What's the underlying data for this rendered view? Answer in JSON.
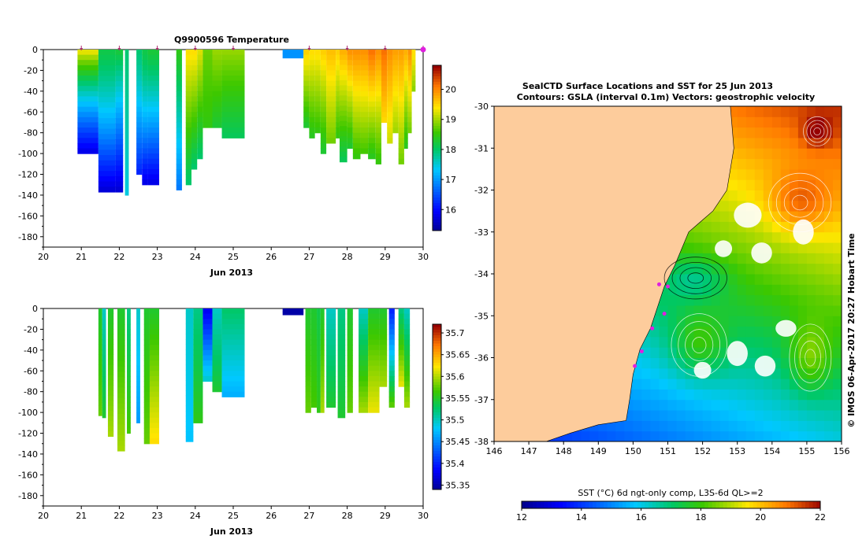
{
  "chart_data": [
    {
      "type": "heatmap",
      "id": "temp",
      "title": "Q9900596  Temperature",
      "xlabel": "Jun 2013",
      "xlim": [
        20,
        30
      ],
      "ylim": [
        -190,
        0
      ],
      "xticks": [
        "20",
        "21",
        "22",
        "23",
        "24",
        "25",
        "26",
        "27",
        "28",
        "29",
        "30"
      ],
      "yticks": [
        "0",
        "-20",
        "-40",
        "-60",
        "-80",
        "-100",
        "-120",
        "-140",
        "-160",
        "-180"
      ],
      "colorbar": {
        "min": 15.3,
        "max": 20.8,
        "ticks": [
          "16",
          "17",
          "18",
          "19",
          "20"
        ],
        "tick_values": [
          16,
          17,
          18,
          19,
          20
        ]
      },
      "markers": [
        21,
        22,
        23,
        24,
        25,
        27,
        28,
        29,
        30
      ],
      "profiles": [
        {
          "x0": 20.9,
          "x1": 21.45,
          "depth": 100,
          "top": 19.5,
          "bottom": 15.8,
          "slope": 0.8
        },
        {
          "x0": 21.45,
          "x1": 21.9,
          "depth": 137,
          "top": 18.2,
          "bottom": 15.7,
          "slope": 1.3
        },
        {
          "x0": 21.9,
          "x1": 22.1,
          "depth": 137,
          "top": 18.3,
          "bottom": 15.7,
          "slope": 1.0
        },
        {
          "x0": 22.15,
          "x1": 22.25,
          "depth": 140,
          "top": 18.0,
          "bottom": 17.5,
          "slope": 1.0
        },
        {
          "x0": 22.45,
          "x1": 22.6,
          "depth": 120,
          "top": 18.0,
          "bottom": 16.2,
          "slope": 1.2
        },
        {
          "x0": 22.6,
          "x1": 22.75,
          "depth": 130,
          "top": 18.2,
          "bottom": 15.8,
          "slope": 1.3
        },
        {
          "x0": 22.75,
          "x1": 23.05,
          "depth": 130,
          "top": 18.3,
          "bottom": 15.8,
          "slope": 1.2
        },
        {
          "x0": 23.5,
          "x1": 23.65,
          "depth": 135,
          "top": 18.5,
          "bottom": 16.8,
          "slope": 1.0
        },
        {
          "x0": 23.75,
          "x1": 23.9,
          "depth": 130,
          "top": 19.5,
          "bottom": 18.0,
          "slope": 1.0
        },
        {
          "x0": 23.9,
          "x1": 24.05,
          "depth": 115,
          "top": 19.5,
          "bottom": 18.0,
          "slope": 1.0
        },
        {
          "x0": 24.05,
          "x1": 24.2,
          "depth": 105,
          "top": 19.3,
          "bottom": 18.0,
          "slope": 1.0
        },
        {
          "x0": 24.2,
          "x1": 24.45,
          "depth": 75,
          "top": 18.8,
          "bottom": 18.5,
          "slope": 1.0
        },
        {
          "x0": 24.45,
          "x1": 24.7,
          "depth": 75,
          "top": 19.0,
          "bottom": 18.3,
          "slope": 1.0
        },
        {
          "x0": 24.7,
          "x1": 25.3,
          "depth": 85,
          "top": 19.0,
          "bottom": 18.1,
          "slope": 0.9
        },
        {
          "x0": 26.3,
          "x1": 26.85,
          "depth": 8,
          "top": 17.0,
          "bottom": 17.0,
          "slope": 1.0
        },
        {
          "x0": 26.85,
          "x1": 27.0,
          "depth": 75,
          "top": 19.6,
          "bottom": 18.3,
          "slope": 1.0
        },
        {
          "x0": 27.0,
          "x1": 27.15,
          "depth": 85,
          "top": 19.5,
          "bottom": 18.4,
          "slope": 1.0
        },
        {
          "x0": 27.15,
          "x1": 27.3,
          "depth": 80,
          "top": 19.5,
          "bottom": 18.5,
          "slope": 1.0
        },
        {
          "x0": 27.3,
          "x1": 27.45,
          "depth": 100,
          "top": 19.6,
          "bottom": 18.3,
          "slope": 1.0
        },
        {
          "x0": 27.45,
          "x1": 27.7,
          "depth": 90,
          "top": 19.7,
          "bottom": 18.8,
          "slope": 1.0
        },
        {
          "x0": 27.7,
          "x1": 27.8,
          "depth": 85,
          "top": 19.6,
          "bottom": 18.5,
          "slope": 1.0
        },
        {
          "x0": 27.8,
          "x1": 28.0,
          "depth": 108,
          "top": 19.8,
          "bottom": 18.1,
          "slope": 1.0
        },
        {
          "x0": 28.0,
          "x1": 28.15,
          "depth": 95,
          "top": 20.0,
          "bottom": 18.3,
          "slope": 1.0
        },
        {
          "x0": 28.15,
          "x1": 28.35,
          "depth": 105,
          "top": 20.0,
          "bottom": 18.5,
          "slope": 1.0
        },
        {
          "x0": 28.35,
          "x1": 28.55,
          "depth": 100,
          "top": 20.0,
          "bottom": 18.6,
          "slope": 1.0
        },
        {
          "x0": 28.55,
          "x1": 28.75,
          "depth": 105,
          "top": 20.2,
          "bottom": 18.4,
          "slope": 1.0
        },
        {
          "x0": 28.75,
          "x1": 28.9,
          "depth": 110,
          "top": 20.0,
          "bottom": 18.5,
          "slope": 1.0
        },
        {
          "x0": 28.9,
          "x1": 29.05,
          "depth": 70,
          "top": 20.2,
          "bottom": 19.5,
          "slope": 1.0
        },
        {
          "x0": 29.05,
          "x1": 29.2,
          "depth": 90,
          "top": 20.0,
          "bottom": 19.2,
          "slope": 1.0
        },
        {
          "x0": 29.2,
          "x1": 29.35,
          "depth": 80,
          "top": 19.9,
          "bottom": 19.0,
          "slope": 1.0
        },
        {
          "x0": 29.35,
          "x1": 29.5,
          "depth": 110,
          "top": 19.9,
          "bottom": 18.8,
          "slope": 1.0
        },
        {
          "x0": 29.5,
          "x1": 29.6,
          "depth": 95,
          "top": 19.8,
          "bottom": 18.4,
          "slope": 1.0
        },
        {
          "x0": 29.6,
          "x1": 29.7,
          "depth": 80,
          "top": 20.0,
          "bottom": 18.8,
          "slope": 1.0
        },
        {
          "x0": 29.7,
          "x1": 29.8,
          "depth": 40,
          "top": 19.5,
          "bottom": 18.9,
          "slope": 1.0
        }
      ]
    },
    {
      "type": "heatmap",
      "id": "psal",
      "title": "",
      "xlabel": "Jun 2013",
      "xlim": [
        20,
        30
      ],
      "ylim": [
        -190,
        0
      ],
      "xticks": [
        "20",
        "21",
        "22",
        "23",
        "24",
        "25",
        "26",
        "27",
        "28",
        "29",
        "30"
      ],
      "yticks": [
        "0",
        "-20",
        "-40",
        "-60",
        "-80",
        "-100",
        "-120",
        "-140",
        "-160",
        "-180"
      ],
      "colorbar": {
        "min": 35.34,
        "max": 35.72,
        "ticks": [
          "35.35",
          "35.4",
          "35.45",
          "35.5",
          "35.55",
          "35.6",
          "35.65",
          "35.7"
        ],
        "tick_values": [
          35.35,
          35.4,
          35.45,
          35.5,
          35.55,
          35.6,
          35.65,
          35.7
        ]
      },
      "markers": [],
      "profiles": [
        {
          "x0": 21.45,
          "x1": 21.55,
          "depth": 103,
          "top": 35.55,
          "bottom": 35.58,
          "slope": 1.0
        },
        {
          "x0": 21.55,
          "x1": 21.65,
          "depth": 105,
          "top": 35.5,
          "bottom": 35.55,
          "slope": 1.0
        },
        {
          "x0": 21.7,
          "x1": 21.85,
          "depth": 123,
          "top": 35.55,
          "bottom": 35.6,
          "slope": 1.0
        },
        {
          "x0": 21.95,
          "x1": 22.15,
          "depth": 137,
          "top": 35.55,
          "bottom": 35.6,
          "slope": 1.0
        },
        {
          "x0": 22.2,
          "x1": 22.3,
          "depth": 120,
          "top": 35.52,
          "bottom": 35.57,
          "slope": 1.0
        },
        {
          "x0": 22.45,
          "x1": 22.55,
          "depth": 110,
          "top": 35.5,
          "bottom": 35.46,
          "slope": 1.0
        },
        {
          "x0": 22.65,
          "x1": 22.8,
          "depth": 130,
          "top": 35.55,
          "bottom": 35.58,
          "slope": 1.0
        },
        {
          "x0": 22.8,
          "x1": 23.05,
          "depth": 130,
          "top": 35.55,
          "bottom": 35.63,
          "slope": 1.0
        },
        {
          "x0": 23.75,
          "x1": 23.95,
          "depth": 128,
          "top": 35.5,
          "bottom": 35.48,
          "slope": 1.0
        },
        {
          "x0": 23.95,
          "x1": 24.2,
          "depth": 110,
          "top": 35.52,
          "bottom": 35.56,
          "slope": 1.0
        },
        {
          "x0": 24.2,
          "x1": 24.45,
          "depth": 70,
          "top": 35.38,
          "bottom": 35.5,
          "slope": 1.0
        },
        {
          "x0": 24.45,
          "x1": 24.7,
          "depth": 80,
          "top": 35.5,
          "bottom": 35.55,
          "slope": 1.0
        },
        {
          "x0": 24.7,
          "x1": 25.3,
          "depth": 85,
          "top": 35.53,
          "bottom": 35.47,
          "slope": 1.0
        },
        {
          "x0": 26.3,
          "x1": 26.85,
          "depth": 6,
          "top": 35.35,
          "bottom": 35.35,
          "slope": 1.0
        },
        {
          "x0": 26.9,
          "x1": 27.05,
          "depth": 100,
          "top": 35.55,
          "bottom": 35.58,
          "slope": 1.0
        },
        {
          "x0": 27.05,
          "x1": 27.2,
          "depth": 95,
          "top": 35.55,
          "bottom": 35.57,
          "slope": 1.0
        },
        {
          "x0": 27.2,
          "x1": 27.3,
          "depth": 100,
          "top": 35.54,
          "bottom": 35.56,
          "slope": 1.0
        },
        {
          "x0": 27.3,
          "x1": 27.4,
          "depth": 100,
          "top": 35.55,
          "bottom": 35.6,
          "slope": 1.0
        },
        {
          "x0": 27.45,
          "x1": 27.7,
          "depth": 95,
          "top": 35.5,
          "bottom": 35.55,
          "slope": 1.0
        },
        {
          "x0": 27.75,
          "x1": 27.95,
          "depth": 105,
          "top": 35.52,
          "bottom": 35.55,
          "slope": 1.0
        },
        {
          "x0": 28.0,
          "x1": 28.15,
          "depth": 100,
          "top": 35.55,
          "bottom": 35.58,
          "slope": 1.0
        },
        {
          "x0": 28.3,
          "x1": 28.55,
          "depth": 100,
          "top": 35.5,
          "bottom": 35.6,
          "slope": 1.0
        },
        {
          "x0": 28.55,
          "x1": 28.85,
          "depth": 100,
          "top": 35.55,
          "bottom": 35.62,
          "slope": 1.0
        },
        {
          "x0": 28.85,
          "x1": 29.05,
          "depth": 75,
          "top": 35.55,
          "bottom": 35.6,
          "slope": 1.0
        },
        {
          "x0": 29.1,
          "x1": 29.25,
          "depth": 95,
          "top": 35.4,
          "bottom": 35.58,
          "slope": 1.0
        },
        {
          "x0": 29.35,
          "x1": 29.5,
          "depth": 75,
          "top": 35.52,
          "bottom": 35.62,
          "slope": 1.0
        },
        {
          "x0": 29.5,
          "x1": 29.65,
          "depth": 95,
          "top": 35.5,
          "bottom": 35.6,
          "slope": 1.0
        }
      ]
    },
    {
      "type": "heatmap",
      "id": "map",
      "title": "SealCTD Surface Locations and SST for 25 Jun 2013",
      "subtitle": "Contours: GSLA (interval 0.1m) Vectors: geostrophic velocity",
      "xlim": [
        146,
        156
      ],
      "ylim": [
        -38,
        -30
      ],
      "xticks": [
        "146",
        "147",
        "148",
        "149",
        "150",
        "151",
        "152",
        "153",
        "154",
        "155",
        "156"
      ],
      "yticks": [
        "-30",
        "-31",
        "-32",
        "-33",
        "-34",
        "-35",
        "-36",
        "-37",
        "-38"
      ],
      "colorbar": {
        "label": "SST (°C) 6d ngt-only comp, L3S-6d QL>=2",
        "min": 12,
        "max": 22,
        "ticks": [
          "12",
          "14",
          "16",
          "18",
          "20",
          "22"
        ],
        "tick_values": [
          12,
          14,
          16,
          18,
          20,
          22
        ]
      },
      "side_text": "© IMOS 06-Apr-2017 20:27 Hobart Time",
      "eddies": [
        {
          "lon": 151.9,
          "lat": -35.7,
          "rx": 0.8,
          "ry": 0.75,
          "kind": "warm"
        },
        {
          "lon": 155.1,
          "lat": -36.0,
          "rx": 0.6,
          "ry": 0.8,
          "kind": "warm"
        },
        {
          "lon": 155.3,
          "lat": -30.6,
          "rx": 0.4,
          "ry": 0.35,
          "kind": "warm"
        },
        {
          "lon": 154.8,
          "lat": -32.3,
          "rx": 0.9,
          "ry": 0.7,
          "kind": "warm"
        },
        {
          "lon": 151.8,
          "lat": -34.1,
          "rx": 0.9,
          "ry": 0.5,
          "kind": "cold"
        }
      ],
      "seal_positions": [
        {
          "lon": 150.75,
          "lat": -34.25
        },
        {
          "lon": 151.0,
          "lat": -34.3
        },
        {
          "lon": 150.9,
          "lat": -34.95
        },
        {
          "lon": 150.55,
          "lat": -35.3
        },
        {
          "lon": 150.25,
          "lat": -35.85
        },
        {
          "lon": 150.05,
          "lat": -36.2
        }
      ]
    }
  ]
}
